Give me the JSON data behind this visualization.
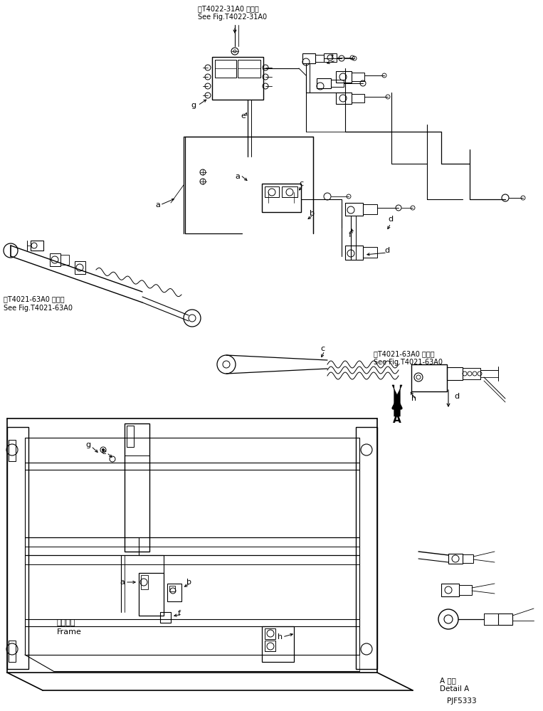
{
  "background_color": "#ffffff",
  "line_color": "#000000",
  "top_ref1": "第T4022-31A0 図参照",
  "top_ref2": "See Fig.T4022-31A0",
  "mid_ref1": "第T4021-63A0 図参照",
  "mid_ref2": "See Fig.T4021-63A0",
  "frame_label1": "フレーム",
  "frame_label2": "Frame",
  "detail_label1": "A 詳細",
  "detail_label2": "Detail A",
  "part_id": "PJF5333"
}
